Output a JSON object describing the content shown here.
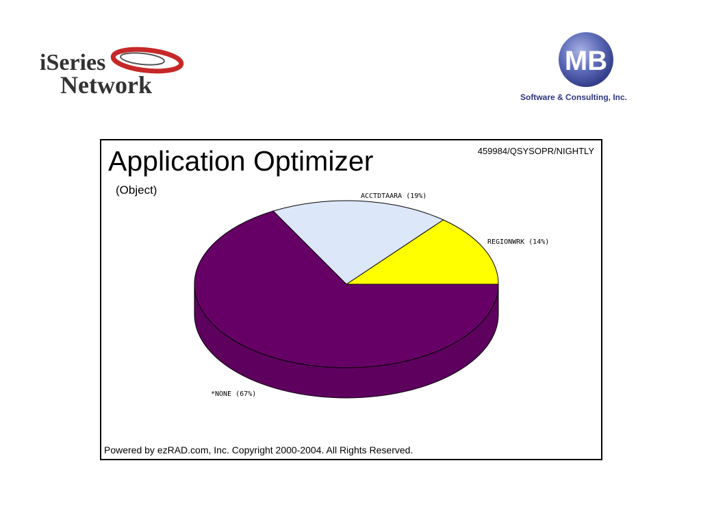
{
  "logos": {
    "left": {
      "line1": "iSeries",
      "line2": "Network"
    },
    "right": {
      "mark": "MB",
      "tagline": "Software & Consulting, Inc."
    }
  },
  "chart": {
    "id_text": "459984/QSYSOPR/NIGHTLY",
    "footer": "Powered by ezRAD.com, Inc. Copyright 2000-2004.  All Rights Reserved."
  },
  "colors": {
    "none": "#660066",
    "acctdtaara": "#dde7fa",
    "regionwrk": "#ffff00",
    "swoosh": "#c62828"
  },
  "chart_data": {
    "type": "pie",
    "title": "Application Optimizer",
    "subtitle": "(Object)",
    "three_d": true,
    "slices": [
      {
        "key": "regionwrk",
        "label": "REGIONWRK (14%)",
        "value": 14
      },
      {
        "key": "acctdtaara",
        "label": "ACCTDTAARA (19%)",
        "value": 19
      },
      {
        "key": "none",
        "label": "*NONE (67%)",
        "value": 67
      }
    ]
  }
}
